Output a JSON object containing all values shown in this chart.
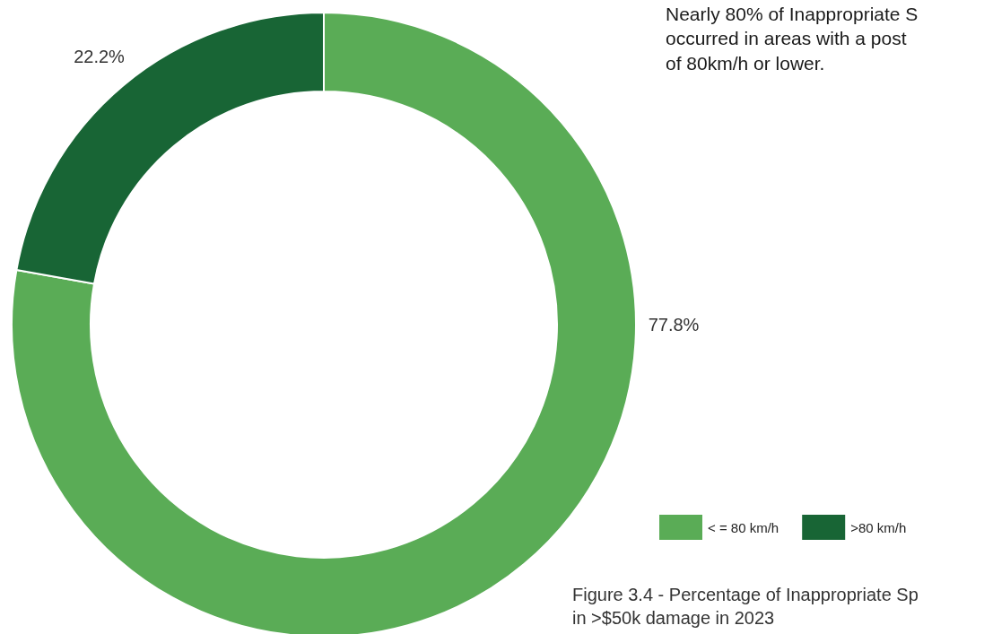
{
  "chart_data": {
    "type": "donut",
    "categories": [
      "< = 80 km/h",
      ">80 km/h"
    ],
    "values": [
      77.8,
      22.2
    ],
    "colors": [
      "#5aac56",
      "#186535"
    ],
    "value_labels": [
      "77.8%",
      "22.2%"
    ],
    "legend": "bottom right",
    "annotations": [
      "Nearly 80% of Inappropriate S\noccurred in areas with a post\nof 80km/h or lower.",
      "Figure 3.4 - Percentage of Inappropriate Sp\nin >$50k damage in 2023"
    ]
  }
}
